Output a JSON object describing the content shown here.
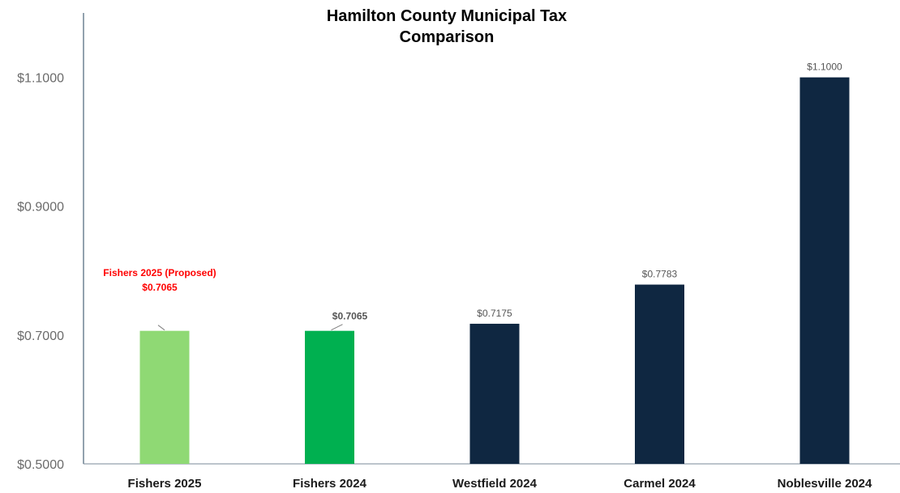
{
  "chart_data": {
    "type": "bar",
    "title_lines": [
      "Hamilton County Municipal Tax",
      "Comparison"
    ],
    "categories": [
      "Fishers 2025",
      "Fishers 2024",
      "Westfield 2024",
      "Carmel 2024",
      "Noblesville 2024"
    ],
    "values": [
      0.7065,
      0.7065,
      0.7175,
      0.7783,
      1.1
    ],
    "data_labels": [
      "",
      "$0.7065",
      "$0.7175",
      "$0.7783",
      "$1.1000"
    ],
    "bar_colors": [
      "#8fd974",
      "#00b050",
      "#0f2741",
      "#0f2741",
      "#0f2741"
    ],
    "ylim": [
      0.5,
      1.2
    ],
    "yticks": [
      0.5,
      0.7,
      0.9,
      1.1
    ],
    "ytick_labels": [
      "$0.5000",
      "$0.7000",
      "$0.9000",
      "$1.1000"
    ],
    "callout": {
      "lines": [
        "Fishers 2025 (Proposed)",
        "$0.7065"
      ],
      "color": "#ff0000"
    },
    "xlabel": "",
    "ylabel": "",
    "grid": false,
    "legend": "none"
  }
}
